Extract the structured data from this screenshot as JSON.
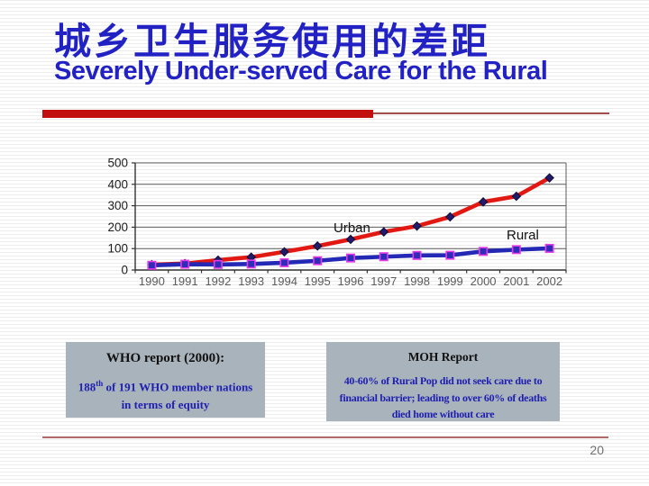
{
  "slide": {
    "title_zh": "城乡卫生服务使用的差距",
    "title_en": "Severely Under-served Care for the Rural",
    "page_number": "20"
  },
  "chart_data": {
    "type": "line",
    "title": "",
    "xlabel": "",
    "ylabel": "",
    "categories": [
      "1990",
      "1991",
      "1992",
      "1993",
      "1994",
      "1995",
      "1996",
      "1997",
      "1998",
      "1999",
      "2000",
      "2001",
      "2002"
    ],
    "series": [
      {
        "name": "Urban",
        "values": [
          25,
          30,
          46,
          60,
          85,
          112,
          143,
          178,
          205,
          248,
          318,
          344,
          430
        ],
        "line_color": "#e21813",
        "marker": "diamond",
        "marker_fill": "#221a6b",
        "marker_stroke": "#0e0c3a"
      },
      {
        "name": "Rural",
        "values": [
          22,
          27,
          26,
          28,
          34,
          43,
          56,
          62,
          68,
          69,
          87,
          95,
          101
        ],
        "line_color": "#2329b5",
        "marker": "square",
        "marker_fill": "#2d2db8",
        "marker_stroke": "#e83ae8"
      }
    ],
    "ylim": [
      0,
      500
    ],
    "yticks": [
      0,
      100,
      200,
      300,
      400,
      500
    ],
    "grid": true,
    "legend_position": "inline-labels"
  },
  "notes": {
    "who": {
      "title": "WHO report (2000):",
      "num": "188",
      "sup": "th",
      "rest": " of 191 WHO member nations in terms of equity"
    },
    "moh": {
      "title": "MOH Report",
      "body": "40-60% of Rural Pop did not seek care due to financial barrier; leading to over 60% of deaths died home without care"
    }
  },
  "colors": {
    "title_blue": "#2222c4",
    "accent_red": "#c21010",
    "note_bg": "#a9b3bc",
    "note_text_blue": "#2020b0",
    "page_number_gray": "#6f6f6f"
  }
}
